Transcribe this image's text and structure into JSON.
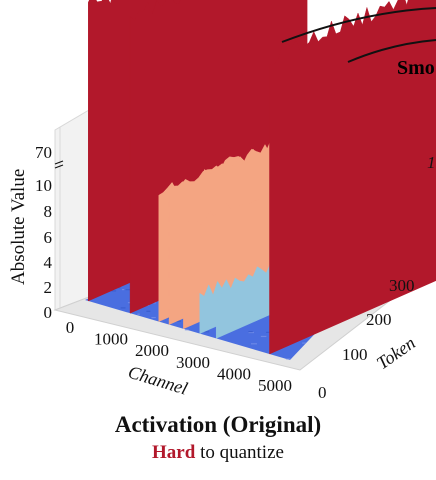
{
  "chart_data": {
    "type": "3d-surface",
    "caption_title": "Activation (Original)",
    "caption_sub": {
      "emph": "Hard",
      "rest": " to quantize"
    },
    "zlabel": "Absolute Value",
    "xlabel": "Channel",
    "ylabel": "Token",
    "z_ticks": [
      "0",
      "2",
      "4",
      "6",
      "8",
      "10",
      "70"
    ],
    "x_ticks": [
      "0",
      "1000",
      "2000",
      "3000",
      "4000",
      "5000"
    ],
    "y_ticks": [
      "0",
      "100",
      "200",
      "300"
    ],
    "xlim": [
      0,
      5000
    ],
    "ylim": [
      0,
      350
    ],
    "zlim": [
      0,
      70
    ],
    "baseline_range": [
      0,
      1
    ],
    "outlier_channels": [
      {
        "channel": 80,
        "value": 70,
        "color": "#b2182b"
      },
      {
        "channel": 1100,
        "value": 70,
        "color": "#b2182b"
      },
      {
        "channel": 1800,
        "value": 10,
        "color": "#f4a582"
      },
      {
        "channel": 2050,
        "value": 12,
        "color": "#f4a582"
      },
      {
        "channel": 2400,
        "value": 8,
        "color": "#f4a582"
      },
      {
        "channel": 2800,
        "value": 3,
        "color": "#92c5de"
      },
      {
        "channel": 3200,
        "value": 3,
        "color": "#92c5de"
      },
      {
        "channel": 4500,
        "value": 70,
        "color": "#b2182b"
      }
    ],
    "colors": {
      "low": "#4a6ee0",
      "mid": "#f4a582",
      "high": "#b2182b"
    },
    "neighbor_label_partial": "Smo"
  }
}
